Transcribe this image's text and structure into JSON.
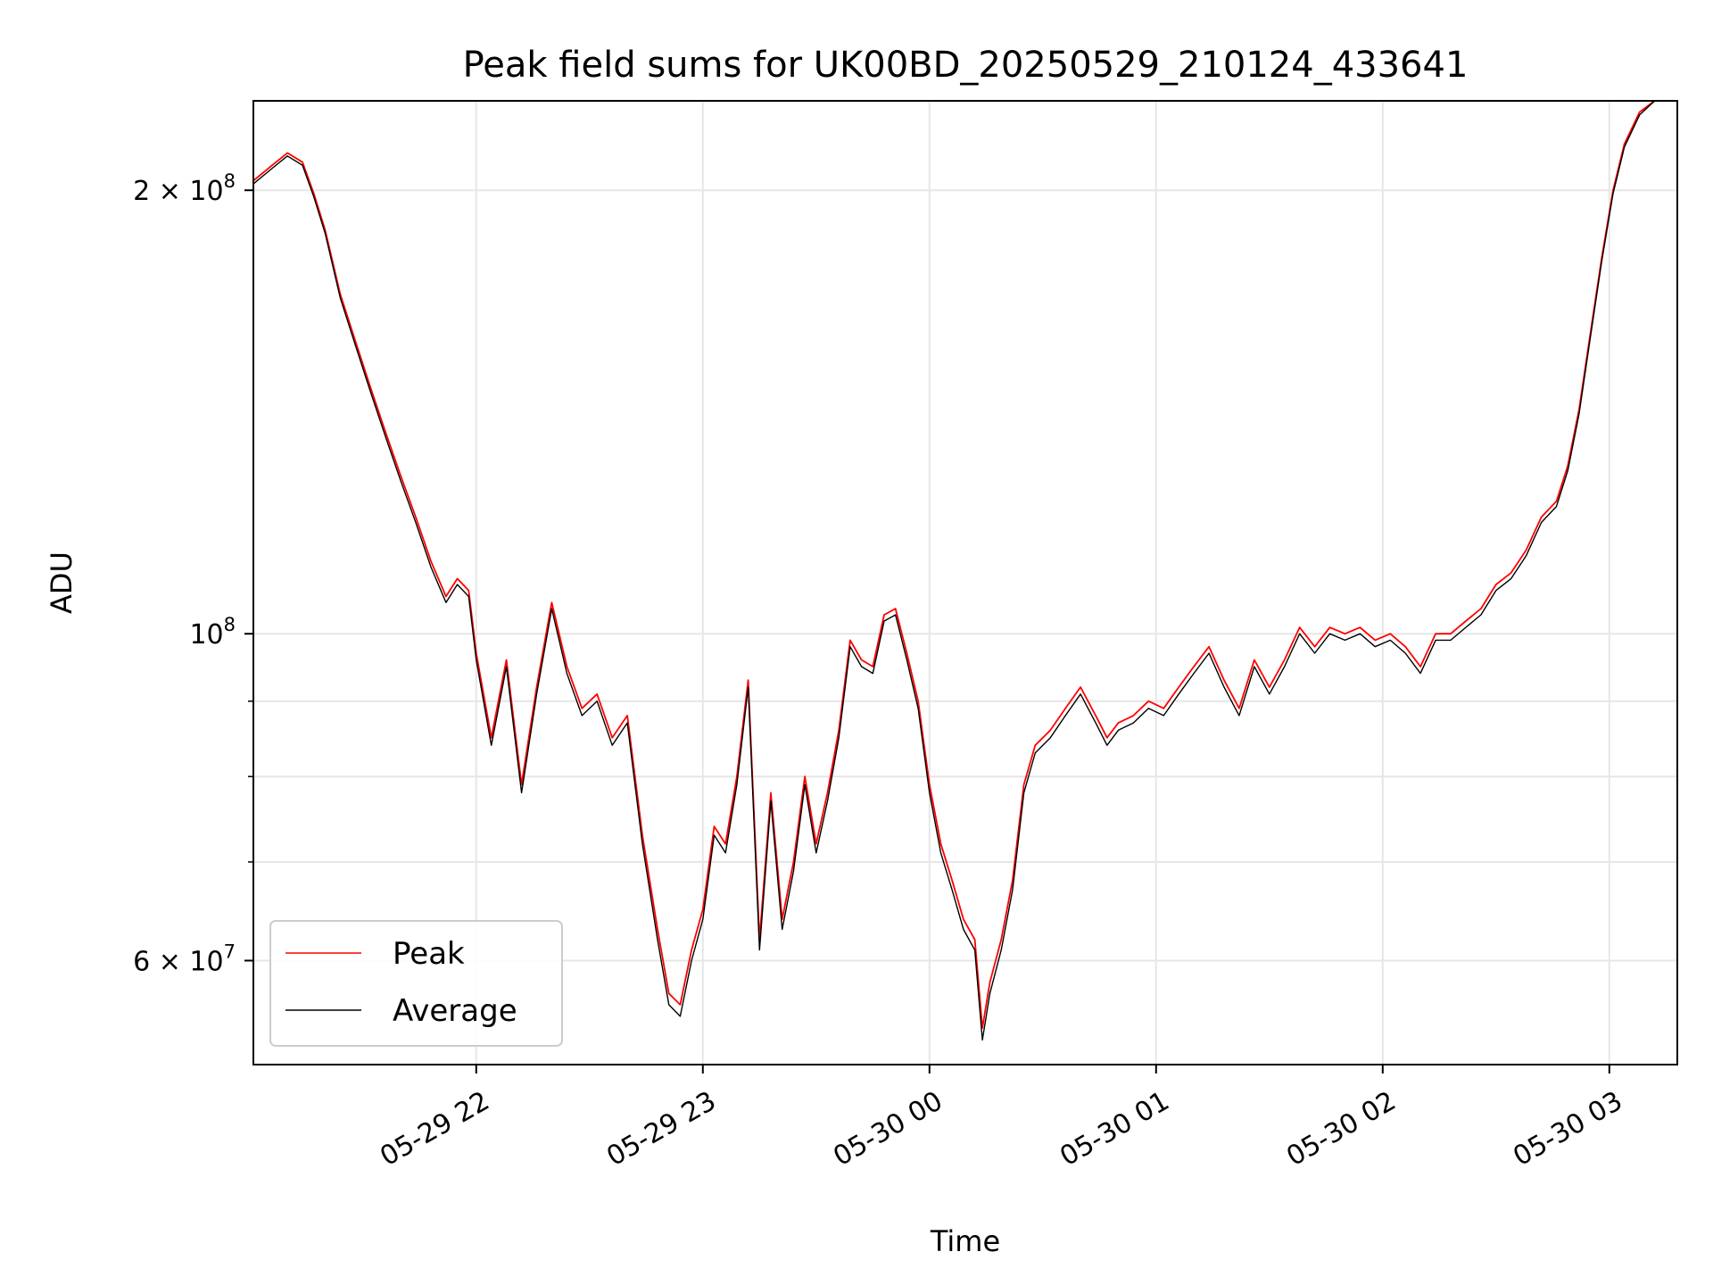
{
  "chart_data": {
    "type": "line",
    "title": "Peak field sums for UK00BD_20250529_210124_433641",
    "xlabel": "Time",
    "ylabel": "ADU",
    "y_scale": "log",
    "ylim": [
      51000000,
      230000000
    ],
    "xlim": [
      "2025-05-29 21:01",
      "2025-05-30 03:18"
    ],
    "x_ticks": [
      {
        "time": "2025-05-29 22:00",
        "label": "05-29 22"
      },
      {
        "time": "2025-05-29 23:00",
        "label": "05-29 23"
      },
      {
        "time": "2025-05-30 00:00",
        "label": "05-30 00"
      },
      {
        "time": "2025-05-30 01:00",
        "label": "05-30 01"
      },
      {
        "time": "2025-05-30 02:00",
        "label": "05-30 02"
      },
      {
        "time": "2025-05-30 03:00",
        "label": "05-30 03"
      }
    ],
    "y_ticks_major": [
      {
        "value": 60000000,
        "mantissa": "6",
        "exponent": "7"
      },
      {
        "value": 100000000,
        "mantissa": "",
        "exponent": "8"
      },
      {
        "value": 200000000,
        "mantissa": "2",
        "exponent": "8"
      }
    ],
    "y_ticks_minor": [
      70000000,
      80000000,
      90000000
    ],
    "grid": true,
    "legend_position": "bottom-left",
    "series": [
      {
        "name": "Peak",
        "color": "#ff0000",
        "points": [
          [
            "2025-05-29 21:01",
            203000000
          ],
          [
            "2025-05-29 21:06",
            208000000
          ],
          [
            "2025-05-29 21:10",
            212000000
          ],
          [
            "2025-05-29 21:14",
            209000000
          ],
          [
            "2025-05-29 21:17",
            199000000
          ],
          [
            "2025-05-29 21:20",
            188000000
          ],
          [
            "2025-05-29 21:24",
            170000000
          ],
          [
            "2025-05-29 21:28",
            158000000
          ],
          [
            "2025-05-29 21:32",
            147000000
          ],
          [
            "2025-05-29 21:36",
            137000000
          ],
          [
            "2025-05-29 21:40",
            128000000
          ],
          [
            "2025-05-29 21:44",
            120000000
          ],
          [
            "2025-05-29 21:48",
            112000000
          ],
          [
            "2025-05-29 21:52",
            106000000
          ],
          [
            "2025-05-29 21:55",
            109000000
          ],
          [
            "2025-05-29 21:58",
            107000000
          ],
          [
            "2025-05-29 22:00",
            97000000
          ],
          [
            "2025-05-29 22:04",
            85000000
          ],
          [
            "2025-05-29 22:08",
            96000000
          ],
          [
            "2025-05-29 22:12",
            79000000
          ],
          [
            "2025-05-29 22:16",
            92000000
          ],
          [
            "2025-05-29 22:20",
            105000000
          ],
          [
            "2025-05-29 22:24",
            95000000
          ],
          [
            "2025-05-29 22:28",
            89000000
          ],
          [
            "2025-05-29 22:32",
            91000000
          ],
          [
            "2025-05-29 22:36",
            85000000
          ],
          [
            "2025-05-29 22:40",
            88000000
          ],
          [
            "2025-05-29 22:44",
            73000000
          ],
          [
            "2025-05-29 22:48",
            63000000
          ],
          [
            "2025-05-29 22:51",
            57000000
          ],
          [
            "2025-05-29 22:54",
            56000000
          ],
          [
            "2025-05-29 22:57",
            61000000
          ],
          [
            "2025-05-29 23:00",
            65000000
          ],
          [
            "2025-05-29 23:03",
            74000000
          ],
          [
            "2025-05-29 23:06",
            72000000
          ],
          [
            "2025-05-29 23:09",
            80000000
          ],
          [
            "2025-05-29 23:12",
            93000000
          ],
          [
            "2025-05-29 23:15",
            62000000
          ],
          [
            "2025-05-29 23:18",
            78000000
          ],
          [
            "2025-05-29 23:21",
            64000000
          ],
          [
            "2025-05-29 23:24",
            70000000
          ],
          [
            "2025-05-29 23:27",
            80000000
          ],
          [
            "2025-05-29 23:30",
            72000000
          ],
          [
            "2025-05-29 23:33",
            78000000
          ],
          [
            "2025-05-29 23:36",
            86000000
          ],
          [
            "2025-05-29 23:39",
            99000000
          ],
          [
            "2025-05-29 23:42",
            96000000
          ],
          [
            "2025-05-29 23:45",
            95000000
          ],
          [
            "2025-05-29 23:48",
            103000000
          ],
          [
            "2025-05-29 23:51",
            104000000
          ],
          [
            "2025-05-29 23:54",
            97000000
          ],
          [
            "2025-05-29 23:57",
            90000000
          ],
          [
            "2025-05-30 00:00",
            79000000
          ],
          [
            "2025-05-30 00:03",
            72000000
          ],
          [
            "2025-05-30 00:06",
            68000000
          ],
          [
            "2025-05-30 00:09",
            64000000
          ],
          [
            "2025-05-30 00:12",
            62000000
          ],
          [
            "2025-05-30 00:14",
            54000000
          ],
          [
            "2025-05-30 00:16",
            58000000
          ],
          [
            "2025-05-30 00:19",
            62000000
          ],
          [
            "2025-05-30 00:22",
            68000000
          ],
          [
            "2025-05-30 00:25",
            79000000
          ],
          [
            "2025-05-30 00:28",
            84000000
          ],
          [
            "2025-05-30 00:32",
            86000000
          ],
          [
            "2025-05-30 00:36",
            89000000
          ],
          [
            "2025-05-30 00:40",
            92000000
          ],
          [
            "2025-05-30 00:44",
            88000000
          ],
          [
            "2025-05-30 00:47",
            85000000
          ],
          [
            "2025-05-30 00:50",
            87000000
          ],
          [
            "2025-05-30 00:54",
            88000000
          ],
          [
            "2025-05-30 00:58",
            90000000
          ],
          [
            "2025-05-30 01:02",
            89000000
          ],
          [
            "2025-05-30 01:06",
            92000000
          ],
          [
            "2025-05-30 01:10",
            95000000
          ],
          [
            "2025-05-30 01:14",
            98000000
          ],
          [
            "2025-05-30 01:18",
            93000000
          ],
          [
            "2025-05-30 01:22",
            89000000
          ],
          [
            "2025-05-30 01:26",
            96000000
          ],
          [
            "2025-05-30 01:30",
            92000000
          ],
          [
            "2025-05-30 01:34",
            96000000
          ],
          [
            "2025-05-30 01:38",
            101000000
          ],
          [
            "2025-05-30 01:42",
            98000000
          ],
          [
            "2025-05-30 01:46",
            101000000
          ],
          [
            "2025-05-30 01:50",
            100000000
          ],
          [
            "2025-05-30 01:54",
            101000000
          ],
          [
            "2025-05-30 01:58",
            99000000
          ],
          [
            "2025-05-30 02:02",
            100000000
          ],
          [
            "2025-05-30 02:06",
            98000000
          ],
          [
            "2025-05-30 02:10",
            95000000
          ],
          [
            "2025-05-30 02:14",
            100000000
          ],
          [
            "2025-05-30 02:18",
            100000000
          ],
          [
            "2025-05-30 02:22",
            102000000
          ],
          [
            "2025-05-30 02:26",
            104000000
          ],
          [
            "2025-05-30 02:30",
            108000000
          ],
          [
            "2025-05-30 02:34",
            110000000
          ],
          [
            "2025-05-30 02:38",
            114000000
          ],
          [
            "2025-05-30 02:42",
            120000000
          ],
          [
            "2025-05-30 02:46",
            123000000
          ],
          [
            "2025-05-30 02:49",
            130000000
          ],
          [
            "2025-05-30 02:52",
            142000000
          ],
          [
            "2025-05-30 02:55",
            160000000
          ],
          [
            "2025-05-30 02:58",
            180000000
          ],
          [
            "2025-05-30 03:01",
            200000000
          ],
          [
            "2025-05-30 03:04",
            215000000
          ],
          [
            "2025-05-30 03:08",
            226000000
          ],
          [
            "2025-05-30 03:12",
            230000000
          ],
          [
            "2025-05-30 03:18",
            230000000
          ]
        ]
      },
      {
        "name": "Average",
        "color": "#000000",
        "points": [
          [
            "2025-05-29 21:01",
            202000000
          ],
          [
            "2025-05-29 21:06",
            207000000
          ],
          [
            "2025-05-29 21:10",
            211000000
          ],
          [
            "2025-05-29 21:14",
            208000000
          ],
          [
            "2025-05-29 21:17",
            198000000
          ],
          [
            "2025-05-29 21:20",
            187000000
          ],
          [
            "2025-05-29 21:24",
            169000000
          ],
          [
            "2025-05-29 21:28",
            157000000
          ],
          [
            "2025-05-29 21:32",
            146000000
          ],
          [
            "2025-05-29 21:36",
            136000000
          ],
          [
            "2025-05-29 21:40",
            127000000
          ],
          [
            "2025-05-29 21:44",
            119000000
          ],
          [
            "2025-05-29 21:48",
            111000000
          ],
          [
            "2025-05-29 21:52",
            105000000
          ],
          [
            "2025-05-29 21:55",
            108000000
          ],
          [
            "2025-05-29 21:58",
            106000000
          ],
          [
            "2025-05-29 22:00",
            96000000
          ],
          [
            "2025-05-29 22:04",
            84000000
          ],
          [
            "2025-05-29 22:08",
            95000000
          ],
          [
            "2025-05-29 22:12",
            78000000
          ],
          [
            "2025-05-29 22:16",
            91000000
          ],
          [
            "2025-05-29 22:20",
            104000000
          ],
          [
            "2025-05-29 22:24",
            94000000
          ],
          [
            "2025-05-29 22:28",
            88000000
          ],
          [
            "2025-05-29 22:32",
            90000000
          ],
          [
            "2025-05-29 22:36",
            84000000
          ],
          [
            "2025-05-29 22:40",
            87000000
          ],
          [
            "2025-05-29 22:44",
            72000000
          ],
          [
            "2025-05-29 22:48",
            62000000
          ],
          [
            "2025-05-29 22:51",
            56000000
          ],
          [
            "2025-05-29 22:54",
            55000000
          ],
          [
            "2025-05-29 22:57",
            60000000
          ],
          [
            "2025-05-29 23:00",
            64000000
          ],
          [
            "2025-05-29 23:03",
            73000000
          ],
          [
            "2025-05-29 23:06",
            71000000
          ],
          [
            "2025-05-29 23:09",
            79000000
          ],
          [
            "2025-05-29 23:12",
            92000000
          ],
          [
            "2025-05-29 23:15",
            61000000
          ],
          [
            "2025-05-29 23:18",
            77000000
          ],
          [
            "2025-05-29 23:21",
            63000000
          ],
          [
            "2025-05-29 23:24",
            69000000
          ],
          [
            "2025-05-29 23:27",
            79000000
          ],
          [
            "2025-05-29 23:30",
            71000000
          ],
          [
            "2025-05-29 23:33",
            77000000
          ],
          [
            "2025-05-29 23:36",
            85000000
          ],
          [
            "2025-05-29 23:39",
            98000000
          ],
          [
            "2025-05-29 23:42",
            95000000
          ],
          [
            "2025-05-29 23:45",
            94000000
          ],
          [
            "2025-05-29 23:48",
            102000000
          ],
          [
            "2025-05-29 23:51",
            103000000
          ],
          [
            "2025-05-29 23:54",
            96000000
          ],
          [
            "2025-05-29 23:57",
            89000000
          ],
          [
            "2025-05-30 00:00",
            78000000
          ],
          [
            "2025-05-30 00:03",
            71000000
          ],
          [
            "2025-05-30 00:06",
            67000000
          ],
          [
            "2025-05-30 00:09",
            63000000
          ],
          [
            "2025-05-30 00:12",
            61000000
          ],
          [
            "2025-05-30 00:14",
            53000000
          ],
          [
            "2025-05-30 00:16",
            57000000
          ],
          [
            "2025-05-30 00:19",
            61000000
          ],
          [
            "2025-05-30 00:22",
            67000000
          ],
          [
            "2025-05-30 00:25",
            78000000
          ],
          [
            "2025-05-30 00:28",
            83000000
          ],
          [
            "2025-05-30 00:32",
            85000000
          ],
          [
            "2025-05-30 00:36",
            88000000
          ],
          [
            "2025-05-30 00:40",
            91000000
          ],
          [
            "2025-05-30 00:44",
            87000000
          ],
          [
            "2025-05-30 00:47",
            84000000
          ],
          [
            "2025-05-30 00:50",
            86000000
          ],
          [
            "2025-05-30 00:54",
            87000000
          ],
          [
            "2025-05-30 00:58",
            89000000
          ],
          [
            "2025-05-30 01:02",
            88000000
          ],
          [
            "2025-05-30 01:06",
            91000000
          ],
          [
            "2025-05-30 01:10",
            94000000
          ],
          [
            "2025-05-30 01:14",
            97000000
          ],
          [
            "2025-05-30 01:18",
            92000000
          ],
          [
            "2025-05-30 01:22",
            88000000
          ],
          [
            "2025-05-30 01:26",
            95000000
          ],
          [
            "2025-05-30 01:30",
            91000000
          ],
          [
            "2025-05-30 01:34",
            95000000
          ],
          [
            "2025-05-30 01:38",
            100000000
          ],
          [
            "2025-05-30 01:42",
            97000000
          ],
          [
            "2025-05-30 01:46",
            100000000
          ],
          [
            "2025-05-30 01:50",
            99000000
          ],
          [
            "2025-05-30 01:54",
            100000000
          ],
          [
            "2025-05-30 01:58",
            98000000
          ],
          [
            "2025-05-30 02:02",
            99000000
          ],
          [
            "2025-05-30 02:06",
            97000000
          ],
          [
            "2025-05-30 02:10",
            94000000
          ],
          [
            "2025-05-30 02:14",
            99000000
          ],
          [
            "2025-05-30 02:18",
            99000000
          ],
          [
            "2025-05-30 02:22",
            101000000
          ],
          [
            "2025-05-30 02:26",
            103000000
          ],
          [
            "2025-05-30 02:30",
            107000000
          ],
          [
            "2025-05-30 02:34",
            109000000
          ],
          [
            "2025-05-30 02:38",
            113000000
          ],
          [
            "2025-05-30 02:42",
            119000000
          ],
          [
            "2025-05-30 02:46",
            122000000
          ],
          [
            "2025-05-30 02:49",
            129000000
          ],
          [
            "2025-05-30 02:52",
            141000000
          ],
          [
            "2025-05-30 02:55",
            159000000
          ],
          [
            "2025-05-30 02:58",
            179000000
          ],
          [
            "2025-05-30 03:01",
            199000000
          ],
          [
            "2025-05-30 03:04",
            214000000
          ],
          [
            "2025-05-30 03:08",
            225000000
          ],
          [
            "2025-05-30 03:12",
            230000000
          ],
          [
            "2025-05-30 03:18",
            230000000
          ]
        ]
      }
    ]
  }
}
